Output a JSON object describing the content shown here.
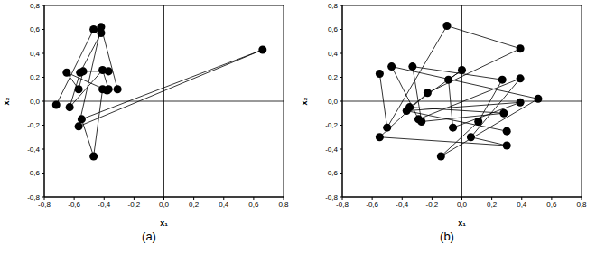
{
  "chart_data": [
    {
      "type": "scatter",
      "title": "(a)",
      "x_label": "x₁",
      "y_label": "x₂",
      "marker": "circle",
      "line_style": "solid",
      "color": "#000000",
      "x": [
        -0.72,
        -0.47,
        -0.42,
        -0.56,
        -0.63,
        -0.41,
        -0.37,
        -0.31,
        -0.42,
        -0.57,
        0.66,
        -0.55,
        -0.47,
        -0.41,
        -0.38,
        -0.65,
        -0.57,
        -0.54,
        -0.37
      ],
      "values": [
        -0.03,
        0.6,
        0.57,
        0.24,
        -0.05,
        0.26,
        0.1,
        0.1,
        0.62,
        -0.21,
        0.43,
        -0.15,
        -0.46,
        0.1,
        0.09,
        0.24,
        0.1,
        0.25,
        0.25
      ],
      "xlim": [
        -0.8,
        0.8
      ],
      "ylim": [
        -0.8,
        0.8
      ],
      "xticks": [
        {
          "value": -0.8,
          "label": "-0,8"
        },
        {
          "value": -0.6,
          "label": "-0,6"
        },
        {
          "value": -0.4,
          "label": "-0,4"
        },
        {
          "value": -0.2,
          "label": "-0,2"
        },
        {
          "value": 0,
          "label": "0,0"
        },
        {
          "value": 0.2,
          "label": "0,2"
        },
        {
          "value": 0.4,
          "label": "0,4"
        },
        {
          "value": 0.6,
          "label": "0,6"
        },
        {
          "value": 0.8,
          "label": "0,8"
        }
      ],
      "yticks": [
        {
          "value": -0.8,
          "label": "-0,8"
        },
        {
          "value": -0.6,
          "label": "-0,6"
        },
        {
          "value": -0.4,
          "label": "-0,4"
        },
        {
          "value": -0.2,
          "label": "-0,2"
        },
        {
          "value": 0,
          "label": "0,0"
        },
        {
          "value": 0.2,
          "label": "0,2"
        },
        {
          "value": 0.4,
          "label": "0,4"
        },
        {
          "value": 0.6,
          "label": "0,6"
        },
        {
          "value": 0.8,
          "label": "0,8"
        }
      ]
    },
    {
      "type": "scatter",
      "title": "(b)",
      "x_label": "x₁",
      "y_label": "x₂",
      "marker": "circle",
      "line_style": "solid",
      "color": "#000000",
      "x": [
        -0.55,
        -0.5,
        -0.1,
        0.39,
        -0.23,
        -0.55,
        0.3,
        0.06,
        0.39,
        -0.29,
        -0.47,
        0.51,
        -0.14,
        0.11,
        0.27,
        -0.33,
        -0.27,
        0.28,
        -0.35,
        0.0,
        -0.09,
        -0.06,
        0.39,
        -0.37,
        0.3
      ],
      "values": [
        0.23,
        -0.22,
        0.63,
        0.44,
        0.07,
        -0.3,
        -0.37,
        -0.3,
        0.19,
        -0.15,
        0.29,
        0.02,
        -0.46,
        -0.17,
        0.18,
        0.29,
        -0.17,
        -0.1,
        -0.05,
        0.26,
        0.18,
        -0.22,
        -0.01,
        -0.08,
        -0.25
      ],
      "xlim": [
        -0.8,
        0.8
      ],
      "ylim": [
        -0.8,
        0.8
      ],
      "xticks": [
        {
          "value": -0.8,
          "label": "-0,8"
        },
        {
          "value": -0.6,
          "label": "-0,6"
        },
        {
          "value": -0.4,
          "label": "-0,4"
        },
        {
          "value": -0.2,
          "label": "-0,2"
        },
        {
          "value": 0,
          "label": "0,0"
        },
        {
          "value": 0.2,
          "label": "0,2"
        },
        {
          "value": 0.4,
          "label": "0,4"
        },
        {
          "value": 0.6,
          "label": "0,6"
        },
        {
          "value": 0.8,
          "label": "0,8"
        }
      ],
      "yticks": [
        {
          "value": -0.8,
          "label": "-0,8"
        },
        {
          "value": -0.6,
          "label": "-0,6"
        },
        {
          "value": -0.4,
          "label": "-0,4"
        },
        {
          "value": -0.2,
          "label": "-0,2"
        },
        {
          "value": 0,
          "label": "0,0"
        },
        {
          "value": 0.2,
          "label": "0,2"
        },
        {
          "value": 0.4,
          "label": "0,4"
        },
        {
          "value": 0.6,
          "label": "0,6"
        },
        {
          "value": 0.8,
          "label": "0,8"
        }
      ]
    }
  ]
}
